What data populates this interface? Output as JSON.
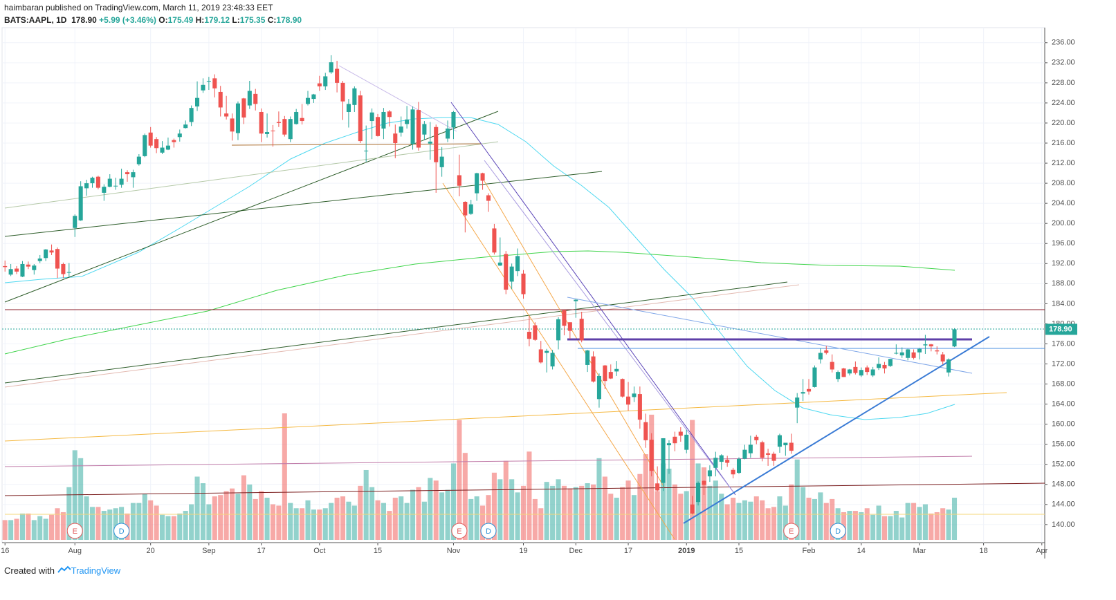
{
  "header": {
    "line1": "haimbaran published on TradingView.com, March 11, 2019 23:48:33 EET",
    "symbol": "BATS:AAPL, 1D",
    "last": "178.90",
    "change": "+5.99 (+3.46%)",
    "ohlc_labels": [
      "O:",
      "H:",
      "L:",
      "C:"
    ],
    "ohlc_values": [
      "175.49",
      "179.12",
      "175.35",
      "178.90"
    ]
  },
  "footer": {
    "text": "Created with",
    "brand": "TradingView"
  },
  "events": [
    "E",
    "D",
    "E",
    "D",
    "E",
    "D"
  ],
  "chart_data": {
    "type": "candlestick",
    "up_color": "#26a69a",
    "down_color": "#ef5350",
    "grid": true,
    "last_label": "178.90",
    "ylim": [
      136.4,
      239.0
    ],
    "yticks": [
      {
        "value": 140,
        "label": "140.00"
      },
      {
        "value": 144,
        "label": "144.00"
      },
      {
        "value": 148,
        "label": "148.00"
      },
      {
        "value": 152,
        "label": "152.00"
      },
      {
        "value": 156,
        "label": "156.00"
      },
      {
        "value": 160,
        "label": "160.00"
      },
      {
        "value": 164,
        "label": "164.00"
      },
      {
        "value": 168,
        "label": "168.00"
      },
      {
        "value": 172,
        "label": "172.00"
      },
      {
        "value": 176,
        "label": "176.00"
      },
      {
        "value": 180,
        "label": "180.00"
      },
      {
        "value": 184,
        "label": "184.00"
      },
      {
        "value": 188,
        "label": "188.00"
      },
      {
        "value": 192,
        "label": "192.00"
      },
      {
        "value": 196,
        "label": "196.00"
      },
      {
        "value": 200,
        "label": "200.00"
      },
      {
        "value": 204,
        "label": "204.00"
      },
      {
        "value": 208,
        "label": "208.00"
      },
      {
        "value": 212,
        "label": "212.00"
      },
      {
        "value": 216,
        "label": "216.00"
      },
      {
        "value": 220,
        "label": "220.00"
      },
      {
        "value": 224,
        "label": "224.00"
      },
      {
        "value": 228,
        "label": "228.00"
      },
      {
        "value": 232,
        "label": "232.00"
      },
      {
        "value": 236,
        "label": "236.00"
      }
    ],
    "categories": [
      "16",
      null,
      null,
      null,
      null,
      null,
      null,
      null,
      null,
      null,
      null,
      null,
      "Aug",
      null,
      null,
      null,
      null,
      null,
      null,
      null,
      null,
      null,
      null,
      null,
      null,
      "20",
      null,
      null,
      null,
      null,
      null,
      null,
      null,
      null,
      null,
      "Sep",
      null,
      null,
      null,
      null,
      null,
      null,
      null,
      null,
      "17",
      null,
      null,
      null,
      null,
      null,
      null,
      null,
      null,
      null,
      "Oct",
      null,
      null,
      null,
      null,
      null,
      null,
      null,
      null,
      null,
      "15",
      null,
      null,
      null,
      null,
      null,
      null,
      null,
      null,
      null,
      null,
      null,
      null,
      "Nov",
      null,
      null,
      null,
      null,
      null,
      null,
      null,
      null,
      null,
      null,
      null,
      "19",
      null,
      null,
      null,
      null,
      null,
      null,
      null,
      null,
      "Dec",
      null,
      null,
      null,
      null,
      null,
      null,
      null,
      null,
      "17",
      null,
      null,
      null,
      null,
      null,
      null,
      null,
      null,
      null,
      "2019",
      null,
      null,
      null,
      null,
      null,
      null,
      null,
      null,
      "15",
      null,
      null,
      null,
      null,
      null,
      null,
      null,
      null,
      null,
      null,
      null,
      "Feb",
      null,
      null,
      null,
      null,
      null,
      null,
      null,
      null,
      "14",
      null,
      null,
      null,
      null,
      null,
      null,
      null,
      null,
      null,
      "Mar",
      null,
      null,
      null,
      null,
      null,
      null,
      null,
      null,
      null,
      null,
      "18",
      null,
      null,
      null,
      null,
      null,
      null,
      null,
      null,
      null,
      "Apr"
    ],
    "ohlc": [
      [
        191.5,
        192.6,
        190.4,
        191.3
      ],
      [
        189.8,
        191.9,
        189.5,
        190.9
      ],
      [
        191.0,
        191.5,
        189.9,
        190.4
      ],
      [
        189.4,
        192.5,
        189.3,
        191.9
      ],
      [
        191.8,
        192.4,
        190.9,
        191.4
      ],
      [
        190.7,
        191.9,
        189.8,
        191.6
      ],
      [
        192.5,
        193.7,
        192.1,
        193.0
      ],
      [
        193.1,
        194.9,
        192.5,
        194.8
      ],
      [
        194.6,
        195.8,
        193.7,
        194.2
      ],
      [
        194.9,
        195.2,
        189.1,
        191.0
      ],
      [
        191.9,
        192.2,
        189.1,
        189.9
      ],
      [
        190.3,
        192.1,
        189.3,
        190.3
      ],
      [
        199.1,
        201.8,
        197.3,
        201.5
      ],
      [
        200.6,
        208.4,
        200.5,
        207.4
      ],
      [
        207.0,
        208.7,
        205.5,
        208.0
      ],
      [
        208.0,
        209.3,
        207.1,
        209.1
      ],
      [
        209.3,
        209.5,
        206.8,
        207.1
      ],
      [
        206.1,
        207.8,
        204.5,
        207.3
      ],
      [
        207.3,
        209.8,
        207.2,
        208.9
      ],
      [
        207.4,
        209.1,
        206.7,
        207.5
      ],
      [
        207.7,
        210.9,
        207.1,
        208.9
      ],
      [
        210.2,
        210.6,
        208.3,
        209.8
      ],
      [
        209.2,
        210.7,
        207.1,
        210.2
      ],
      [
        211.8,
        213.8,
        211.5,
        213.3
      ],
      [
        213.4,
        217.9,
        213.2,
        217.6
      ],
      [
        218.1,
        219.2,
        215.1,
        215.5
      ],
      [
        216.8,
        217.2,
        214.0,
        215.0
      ],
      [
        214.1,
        216.4,
        213.8,
        215.1
      ],
      [
        214.7,
        217.1,
        214.6,
        215.5
      ],
      [
        216.6,
        216.9,
        215.1,
        216.2
      ],
      [
        217.2,
        218.7,
        216.3,
        217.9
      ],
      [
        219.0,
        220.5,
        218.9,
        219.7
      ],
      [
        220.2,
        223.5,
        219.4,
        223.0
      ],
      [
        223.3,
        228.3,
        222.4,
        225.0
      ],
      [
        226.5,
        228.9,
        226.0,
        227.6
      ],
      [
        228.4,
        229.2,
        226.6,
        228.4
      ],
      [
        228.9,
        229.7,
        225.1,
        226.9
      ],
      [
        226.2,
        227.4,
        221.3,
        223.1
      ],
      [
        221.9,
        225.4,
        220.7,
        221.3
      ],
      [
        220.9,
        221.9,
        216.5,
        218.3
      ],
      [
        218.0,
        224.3,
        216.6,
        223.9
      ],
      [
        224.9,
        225.0,
        219.8,
        221.1
      ],
      [
        223.5,
        228.4,
        222.8,
        226.4
      ],
      [
        225.8,
        226.8,
        222.5,
        223.8
      ],
      [
        222.2,
        222.9,
        216.2,
        217.9
      ],
      [
        217.8,
        221.9,
        217.1,
        218.2
      ],
      [
        218.5,
        219.6,
        215.3,
        218.4
      ],
      [
        220.2,
        222.3,
        219.2,
        220.0
      ],
      [
        220.8,
        221.4,
        217.3,
        217.7
      ],
      [
        216.8,
        221.3,
        216.2,
        220.8
      ],
      [
        219.8,
        222.8,
        219.7,
        222.2
      ],
      [
        221.0,
        223.8,
        219.7,
        220.4
      ],
      [
        223.8,
        226.4,
        223.5,
        225.0
      ],
      [
        224.8,
        225.8,
        224.0,
        225.7
      ],
      [
        227.9,
        229.4,
        226.4,
        227.3
      ],
      [
        227.3,
        230.0,
        226.6,
        229.3
      ],
      [
        230.1,
        233.5,
        229.8,
        232.1
      ],
      [
        230.8,
        232.4,
        226.1,
        228.0
      ],
      [
        228.0,
        228.4,
        220.6,
        224.3
      ],
      [
        222.2,
        224.8,
        219.1,
        223.8
      ],
      [
        223.6,
        227.3,
        222.2,
        226.9
      ],
      [
        225.5,
        226.4,
        216.0,
        216.4
      ],
      [
        214.5,
        219.5,
        212.3,
        214.5
      ],
      [
        220.4,
        222.9,
        216.8,
        222.1
      ],
      [
        221.2,
        221.8,
        217.3,
        217.4
      ],
      [
        218.9,
        223.0,
        216.8,
        222.2
      ],
      [
        222.3,
        222.6,
        219.3,
        221.2
      ],
      [
        217.9,
        219.7,
        213.0,
        216.0
      ],
      [
        218.1,
        221.3,
        217.3,
        219.3
      ],
      [
        219.8,
        223.4,
        218.9,
        220.7
      ],
      [
        215.8,
        223.3,
        214.7,
        222.7
      ],
      [
        222.6,
        224.2,
        214.5,
        215.1
      ],
      [
        217.7,
        220.4,
        216.6,
        219.8
      ],
      [
        215.9,
        220.2,
        212.7,
        216.3
      ],
      [
        219.2,
        219.7,
        206.1,
        212.2
      ],
      [
        211.2,
        215.2,
        209.3,
        213.3
      ],
      [
        216.9,
        220.5,
        216.2,
        218.9
      ],
      [
        219.1,
        222.4,
        216.8,
        222.2
      ],
      [
        209.6,
        213.7,
        205.4,
        207.5
      ],
      [
        204.3,
        204.4,
        198.2,
        201.6
      ],
      [
        201.9,
        204.7,
        201.7,
        203.8
      ],
      [
        206.0,
        210.1,
        204.5,
        210.0
      ],
      [
        210.0,
        210.1,
        206.7,
        208.5
      ],
      [
        205.6,
        206.0,
        202.3,
        204.5
      ],
      [
        199.0,
        199.9,
        193.8,
        194.2
      ],
      [
        191.6,
        197.2,
        191.5,
        192.2
      ],
      [
        193.9,
        194.5,
        185.9,
        186.8
      ],
      [
        188.4,
        192.0,
        186.9,
        191.4
      ],
      [
        190.5,
        195.0,
        189.5,
        193.5
      ],
      [
        190.0,
        190.7,
        185.0,
        185.9
      ],
      [
        178.4,
        181.5,
        175.5,
        177.0
      ],
      [
        179.7,
        180.3,
        176.6,
        176.8
      ],
      [
        174.9,
        176.6,
        172.1,
        172.3
      ],
      [
        174.2,
        175.0,
        170.3,
        174.6
      ],
      [
        171.5,
        174.8,
        170.9,
        174.2
      ],
      [
        176.7,
        181.3,
        174.9,
        180.9
      ],
      [
        182.7,
        182.8,
        177.7,
        179.6
      ],
      [
        180.3,
        180.3,
        177.0,
        178.6
      ],
      [
        184.5,
        184.9,
        181.2,
        184.8
      ],
      [
        181.0,
        182.4,
        176.3,
        176.7
      ],
      [
        171.8,
        174.8,
        170.4,
        174.7
      ],
      [
        173.5,
        174.5,
        168.3,
        168.5
      ],
      [
        165.0,
        170.1,
        163.3,
        169.6
      ],
      [
        171.7,
        171.8,
        167.0,
        168.6
      ],
      [
        170.4,
        171.9,
        169.0,
        169.1
      ],
      [
        170.5,
        172.6,
        169.6,
        171.0
      ],
      [
        169.0,
        169.1,
        165.3,
        165.5
      ],
      [
        165.5,
        168.4,
        162.7,
        163.9
      ],
      [
        165.4,
        167.5,
        164.4,
        166.1
      ],
      [
        166.0,
        167.5,
        159.1,
        160.9
      ],
      [
        160.4,
        162.1,
        155.3,
        156.8
      ],
      [
        156.9,
        158.2,
        149.6,
        150.7
      ],
      [
        148.2,
        151.6,
        146.6,
        146.8
      ],
      [
        148.3,
        157.2,
        146.7,
        157.2
      ],
      [
        155.8,
        156.8,
        150.1,
        156.2
      ],
      [
        157.5,
        158.5,
        154.6,
        156.2
      ],
      [
        158.5,
        159.4,
        156.5,
        157.7
      ],
      [
        154.9,
        158.9,
        154.2,
        157.9
      ],
      [
        144.0,
        145.7,
        142.0,
        142.2
      ],
      [
        144.5,
        148.6,
        143.8,
        148.3
      ],
      [
        148.7,
        148.8,
        145.9,
        147.9
      ],
      [
        149.6,
        151.8,
        148.5,
        150.8
      ],
      [
        151.3,
        154.5,
        149.6,
        153.3
      ],
      [
        152.5,
        154.0,
        150.9,
        153.8
      ],
      [
        152.9,
        153.7,
        151.5,
        152.3
      ],
      [
        150.9,
        151.3,
        149.2,
        150.0
      ],
      [
        150.3,
        153.4,
        150.1,
        153.1
      ],
      [
        153.1,
        155.9,
        153.0,
        154.9
      ],
      [
        154.2,
        157.7,
        153.3,
        155.9
      ],
      [
        157.5,
        157.9,
        156.0,
        156.8
      ],
      [
        156.4,
        156.7,
        152.6,
        153.3
      ],
      [
        154.2,
        155.1,
        151.7,
        153.9
      ],
      [
        154.1,
        154.5,
        151.7,
        152.7
      ],
      [
        155.5,
        158.1,
        154.3,
        157.8
      ],
      [
        155.8,
        156.3,
        153.7,
        156.3
      ],
      [
        156.3,
        158.1,
        154.1,
        154.7
      ],
      [
        163.3,
        166.2,
        160.2,
        165.3
      ],
      [
        166.1,
        169.0,
        164.6,
        166.4
      ],
      [
        167.0,
        169.0,
        165.9,
        166.5
      ],
      [
        167.4,
        171.7,
        167.3,
        171.3
      ],
      [
        172.9,
        175.1,
        172.1,
        174.2
      ],
      [
        174.7,
        175.6,
        173.9,
        174.2
      ],
      [
        172.4,
        173.9,
        170.3,
        170.9
      ],
      [
        169.0,
        170.7,
        168.4,
        170.4
      ],
      [
        171.1,
        171.2,
        169.4,
        169.4
      ],
      [
        170.1,
        171.0,
        169.7,
        170.9
      ],
      [
        171.4,
        172.5,
        169.9,
        170.2
      ],
      [
        169.7,
        171.3,
        169.4,
        170.8
      ],
      [
        171.3,
        171.7,
        169.8,
        170.4
      ],
      [
        169.7,
        171.4,
        169.4,
        170.9
      ],
      [
        171.2,
        173.3,
        170.8,
        172.0
      ],
      [
        171.8,
        172.4,
        170.1,
        171.1
      ],
      [
        171.6,
        173.0,
        171.4,
        173.0
      ],
      [
        174.2,
        175.9,
        173.9,
        174.2
      ],
      [
        173.7,
        175.3,
        173.2,
        174.3
      ],
      [
        173.2,
        175.0,
        172.7,
        174.9
      ],
      [
        174.3,
        174.9,
        172.9,
        173.2
      ],
      [
        174.3,
        175.2,
        172.9,
        175.0
      ],
      [
        175.7,
        177.8,
        174.0,
        175.9
      ],
      [
        175.9,
        176.0,
        174.5,
        175.5
      ],
      [
        174.7,
        175.5,
        173.9,
        174.5
      ],
      [
        173.9,
        174.4,
        171.9,
        172.5
      ],
      [
        170.3,
        173.1,
        169.5,
        172.9
      ],
      [
        175.49,
        179.12,
        175.35,
        178.9
      ],
      null,
      null,
      null,
      null,
      null,
      null,
      null,
      null,
      null,
      null,
      null,
      null,
      null,
      null,
      null
    ],
    "volume": [
      15,
      15,
      16,
      20,
      20,
      15,
      18,
      16,
      19,
      24,
      21,
      40,
      68,
      62,
      33,
      25,
      25,
      22,
      23,
      24,
      25,
      20,
      28,
      28,
      35,
      30,
      26,
      19,
      18,
      18,
      20,
      22,
      27,
      48,
      43,
      27,
      33,
      34,
      37,
      39,
      35,
      49,
      42,
      31,
      37,
      32,
      27,
      26,
      96,
      28,
      24,
      24,
      30,
      23,
      23,
      24,
      28,
      32,
      33,
      29,
      26,
      41,
      53,
      40,
      30,
      28,
      22,
      32,
      33,
      28,
      38,
      40,
      29,
      47,
      45,
      36,
      38,
      58,
      91,
      66,
      31,
      33,
      26,
      34,
      51,
      46,
      60,
      46,
      36,
      41,
      67,
      31,
      24,
      44,
      41,
      46,
      41,
      39,
      40,
      41,
      43,
      42,
      62,
      48,
      35,
      32,
      40,
      45,
      34,
      50,
      65,
      95,
      37,
      58,
      54,
      42,
      35,
      37,
      91,
      58,
      55,
      41,
      45,
      35,
      27,
      32,
      28,
      30,
      29,
      33,
      30,
      24,
      25,
      33,
      26,
      42,
      61,
      40,
      32,
      31,
      36,
      28,
      31,
      24,
      21,
      22,
      22,
      21,
      24,
      19,
      26,
      18,
      18,
      22,
      17,
      28,
      28,
      25,
      27,
      20,
      21,
      24,
      23,
      32,
      null,
      null,
      null,
      null,
      null,
      null,
      null,
      null,
      null,
      null,
      null,
      null,
      null,
      null,
      null
    ]
  }
}
